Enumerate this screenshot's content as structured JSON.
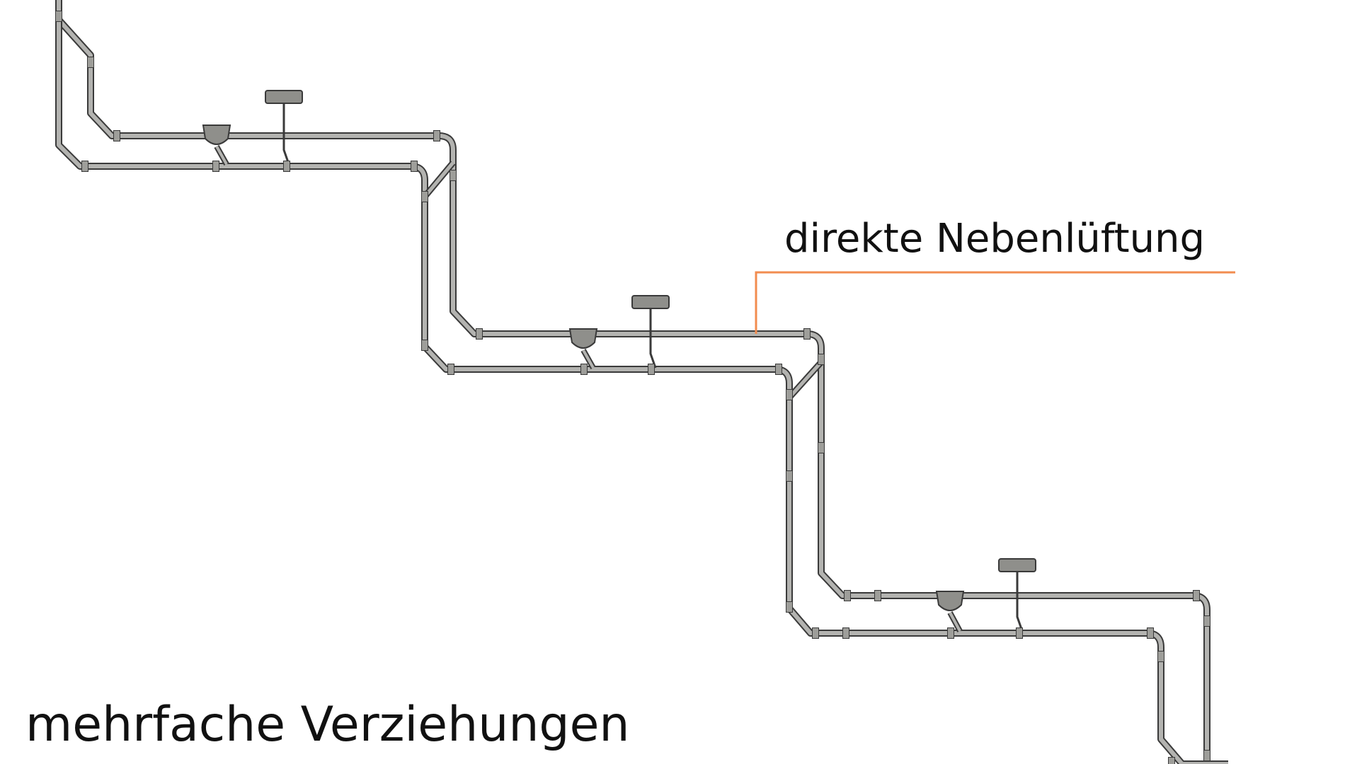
{
  "labels": {
    "annotation": "direkte Nebenlüftung",
    "title": "mehrfache Verziehungen"
  },
  "colors": {
    "background": "#ffffff",
    "pipe_fill": "#b3b3b0",
    "pipe_edge": "#3a3a3a",
    "leader_line": "#f28c4f",
    "text": "#111111"
  },
  "diagram": {
    "floor_levels": 3,
    "pipe_runs": [
      "main-stack",
      "vent-stack"
    ],
    "fixtures_per_level": [
      "floor-drain",
      "washbasin"
    ]
  }
}
